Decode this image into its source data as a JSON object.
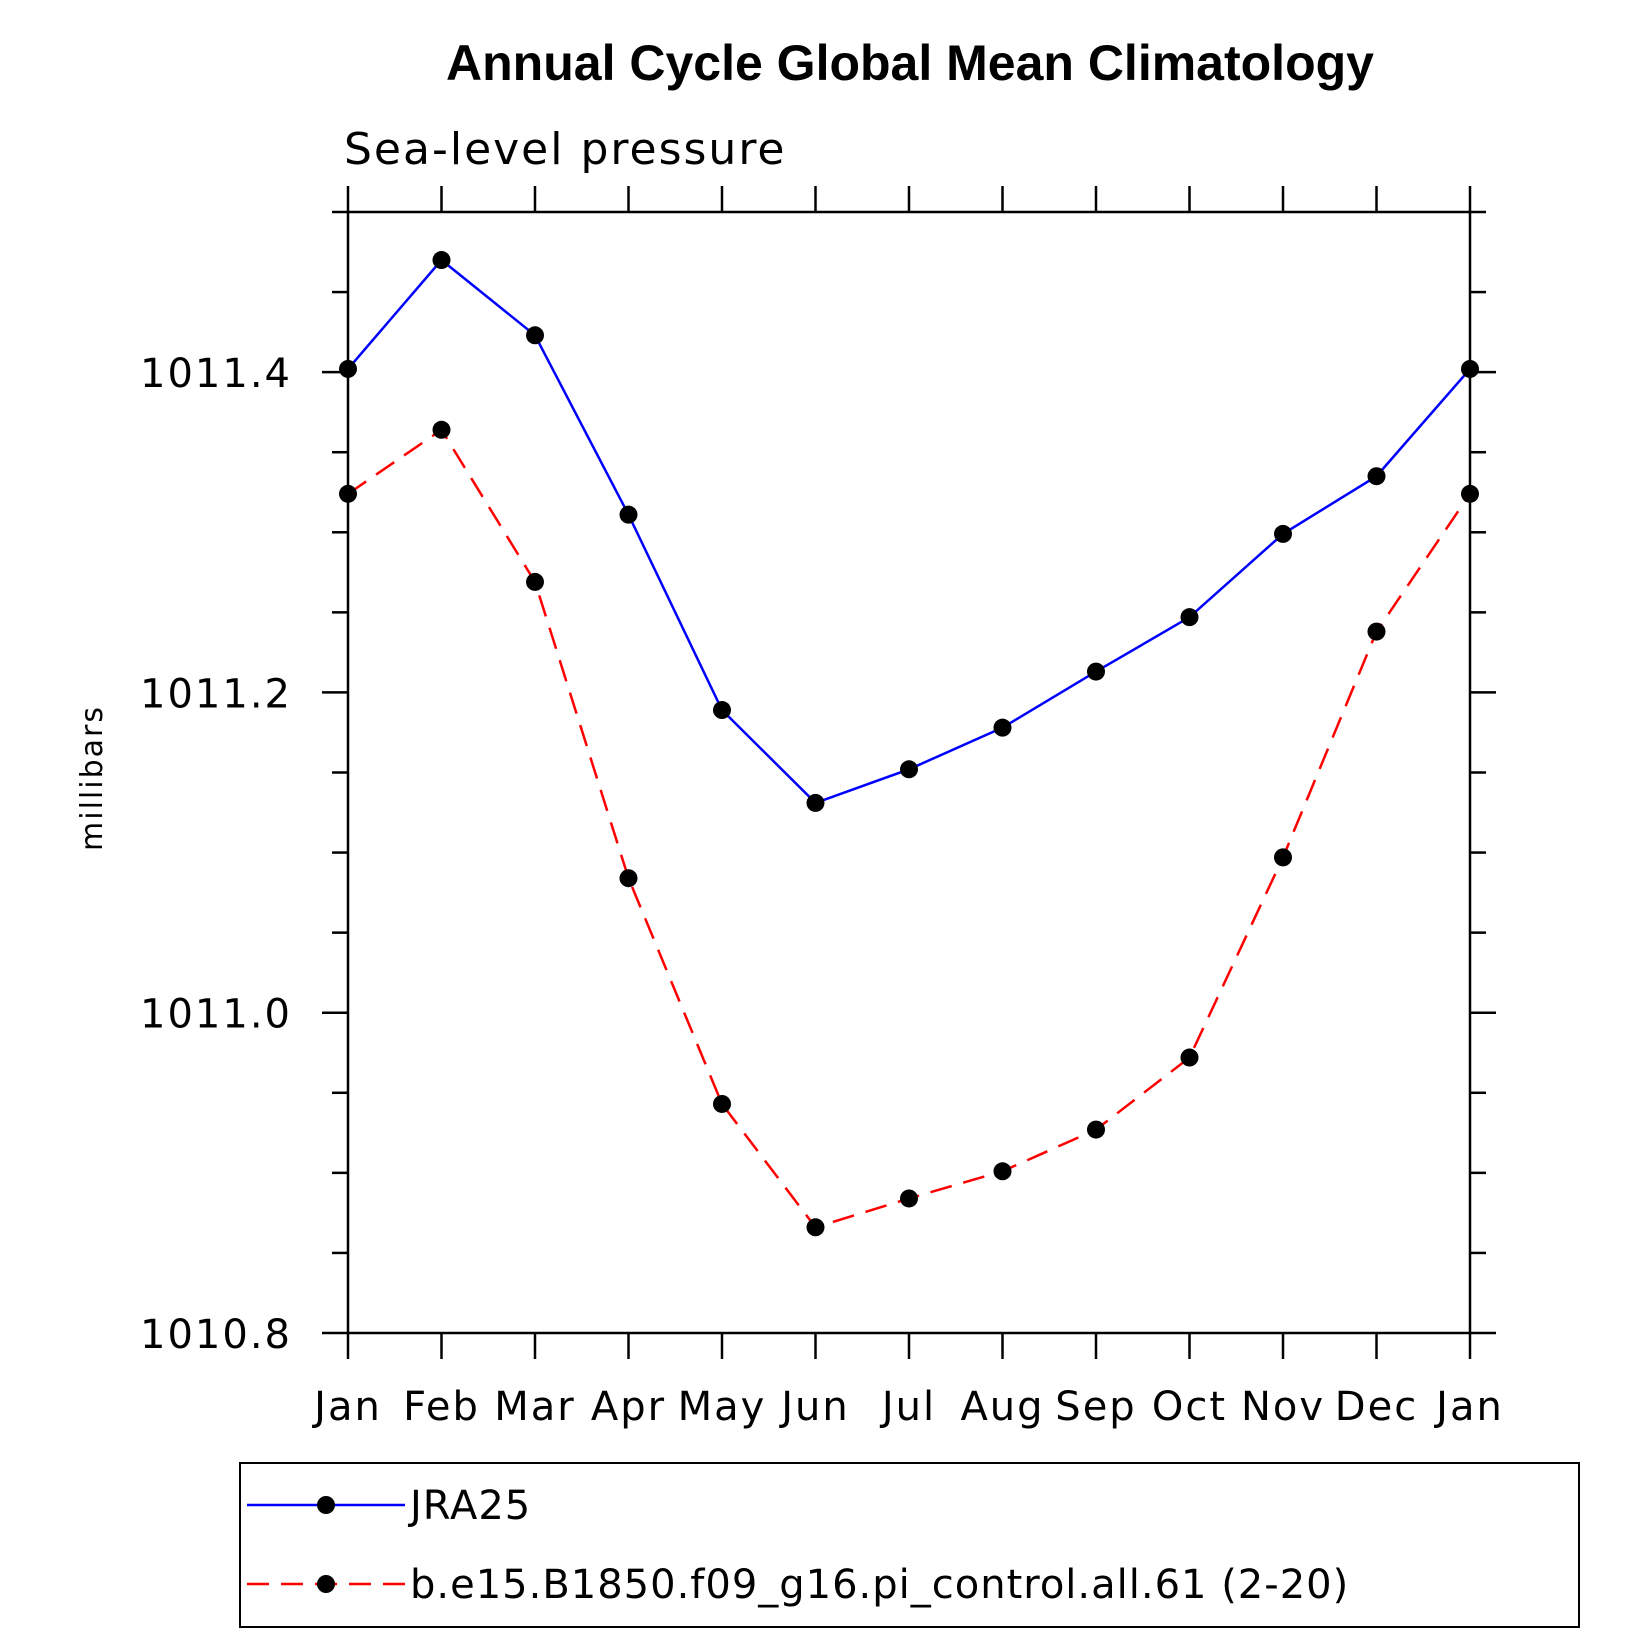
{
  "chart_data": {
    "type": "line",
    "title": "Annual Cycle Global Mean Climatology",
    "subtitle": "Sea-level pressure",
    "ylabel": "millibars",
    "xlabel": "",
    "categories": [
      "Jan",
      "Feb",
      "Mar",
      "Apr",
      "May",
      "Jun",
      "Jul",
      "Aug",
      "Sep",
      "Oct",
      "Nov",
      "Dec",
      "Jan"
    ],
    "ylim": [
      1010.8,
      1011.5
    ],
    "yticks_major": [
      "1010.8",
      "1011.0",
      "1011.2",
      "1011.4"
    ],
    "yticks_major_values": [
      1010.8,
      1011.0,
      1011.2,
      1011.4
    ],
    "ytick_minor_step": 0.05,
    "grid": false,
    "legend_position": "bottom",
    "series": [
      {
        "name": "JRA25",
        "color": "#0000ff",
        "dash": "solid",
        "marker": "filled-circle",
        "values": [
          1011.402,
          1011.47,
          1011.423,
          1011.311,
          1011.189,
          1011.131,
          1011.152,
          1011.178,
          1011.213,
          1011.247,
          1011.299,
          1011.335,
          1011.402
        ]
      },
      {
        "name": "b.e15.B1850.f09_g16.pi_control.all.61 (2-20)",
        "color": "#ff0000",
        "dash": "dashed",
        "marker": "filled-circle",
        "values": [
          1011.324,
          1011.364,
          1011.269,
          1011.084,
          1010.943,
          1010.866,
          1010.884,
          1010.901,
          1010.927,
          1010.972,
          1011.097,
          1011.238,
          1011.324
        ]
      }
    ]
  }
}
